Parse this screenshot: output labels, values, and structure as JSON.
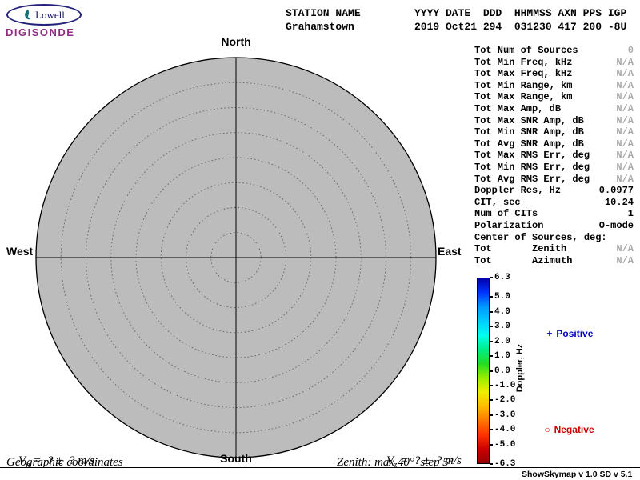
{
  "logo": {
    "brand": "Lowell",
    "product": "DIGISONDE"
  },
  "header": {
    "station_label": "STATION NAME",
    "station_name": "Grahamstown",
    "columns_row": "YYYY DATE  DDD  HHMMSS AXN PPS IGP",
    "values_row": "2019 Oct21 294  031230 417 200 -8U"
  },
  "skymap": {
    "north": "North",
    "south": "South",
    "east": "East",
    "west": "West",
    "max_zenith_deg": 40,
    "step_deg": 5
  },
  "stats": {
    "rows": [
      {
        "label": "Tot Num of Sources",
        "value": "0",
        "muted": true
      },
      {
        "label": "Tot Min Freq, kHz",
        "value": "N/A",
        "muted": true
      },
      {
        "label": "Tot Max Freq, kHz",
        "value": "N/A",
        "muted": true
      },
      {
        "label": "Tot Min Range, km",
        "value": "N/A",
        "muted": true
      },
      {
        "label": "Tot Max Range, km",
        "value": "N/A",
        "muted": true
      },
      {
        "label": "Tot Max Amp, dB",
        "value": "N/A",
        "muted": true
      },
      {
        "label": "Tot Max SNR Amp, dB",
        "value": "N/A",
        "muted": true
      },
      {
        "label": "Tot Min SNR Amp, dB",
        "value": "N/A",
        "muted": true
      },
      {
        "label": "Tot Avg SNR Amp, dB",
        "value": "N/A",
        "muted": true
      },
      {
        "label": "Tot Max RMS Err, deg",
        "value": "N/A",
        "muted": true
      },
      {
        "label": "Tot Min RMS Err, deg",
        "value": "N/A",
        "muted": true
      },
      {
        "label": "Tot Avg RMS Err, deg",
        "value": "N/A",
        "muted": true
      },
      {
        "label": "Doppler Res, Hz",
        "value": "0.0977",
        "muted": false
      },
      {
        "label": "CIT, sec",
        "value": "10.24",
        "muted": false
      },
      {
        "label": "Num of CITs",
        "value": "1",
        "muted": false
      },
      {
        "label": "Polarization",
        "value": "O-mode",
        "muted": false
      },
      {
        "label": "Center of Sources, deg:",
        "value": "",
        "muted": false
      },
      {
        "label": "Tot       Zenith",
        "value": "N/A",
        "muted": true
      },
      {
        "label": "Tot       Azimuth",
        "value": "N/A",
        "muted": true
      }
    ]
  },
  "colorbar": {
    "title": "Doppler, Hz",
    "max": 6.3,
    "min": -6.3,
    "ticks": [
      "6.3",
      "5.0",
      "4.0",
      "3.0",
      "2.0",
      "1.0",
      "0.0",
      "-1.0",
      "-2.0",
      "-3.0",
      "-4.0",
      "-5.0",
      "-6.3"
    ],
    "gradient": [
      "#0000aa",
      "#0033ff",
      "#0099ff",
      "#00ccff",
      "#00ffee",
      "#00ee88",
      "#22dd22",
      "#99ee00",
      "#eeee00",
      "#ffbb00",
      "#ff7700",
      "#ff3300",
      "#cc0000",
      "#990000"
    ],
    "legend": {
      "positive": {
        "marker": "+",
        "label": "Positive"
      },
      "negative": {
        "marker": "○",
        "label": "Negative"
      }
    }
  },
  "footer": {
    "vh": {
      "symbol": "V",
      "sub": "h",
      "text": " =  ? ±  ? m/s"
    },
    "vz": {
      "symbol": "V",
      "sub": "z",
      "text": " =  ? ±  ? m/s"
    },
    "coords": "Geographic coordinates",
    "zenith_info": "Zenith: max 40°  step 5°",
    "version": "ShowSkymap v 1.0  SD v 5.1"
  },
  "colors": {
    "skymap_fill": "#bcbcbc",
    "positive": "#0000cc",
    "negative": "#cc0000",
    "digisonde": "#8b2f7e",
    "muted_value": "#a9a9a9"
  }
}
